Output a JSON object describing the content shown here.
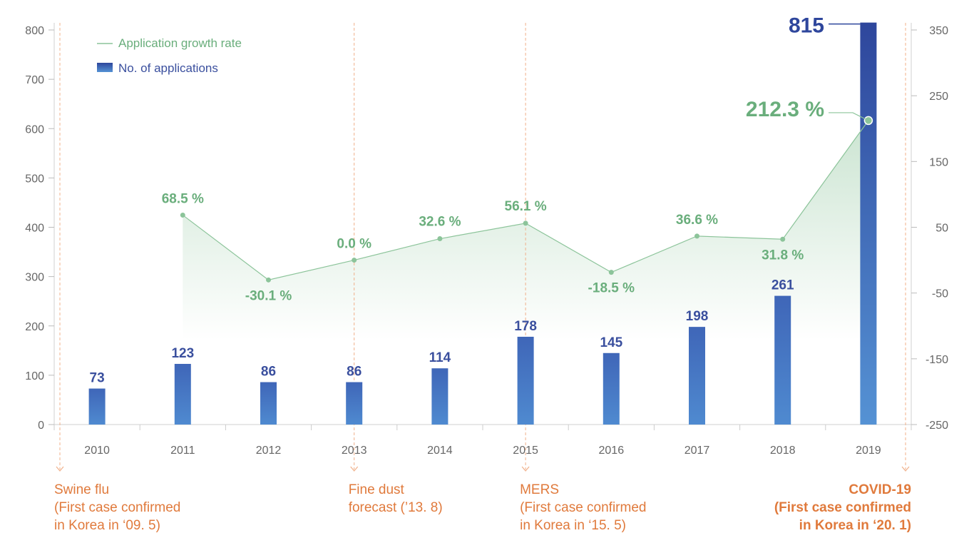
{
  "chart_data": {
    "type": "bar",
    "categories": [
      "2010",
      "2011",
      "2012",
      "2013",
      "2014",
      "2015",
      "2016",
      "2017",
      "2018",
      "2019"
    ],
    "series": [
      {
        "name": "No. of applications",
        "type": "bar",
        "axis": "left",
        "values": [
          73,
          123,
          86,
          86,
          114,
          178,
          145,
          198,
          261,
          815
        ],
        "labels": [
          "73",
          "123",
          "86",
          "86",
          "114",
          "178",
          "145",
          "198",
          "261",
          "815"
        ]
      },
      {
        "name": "Application growth rate",
        "type": "line",
        "axis": "right",
        "values": [
          null,
          68.5,
          -30.1,
          0.0,
          32.6,
          56.1,
          -18.5,
          36.6,
          31.8,
          212.3
        ],
        "labels": [
          "",
          "68.5 %",
          "-30.1 %",
          "0.0 %",
          "32.6 %",
          "56.1 %",
          "-18.5 %",
          "36.6 %",
          "31.8 %",
          "212.3 %"
        ]
      }
    ],
    "y_left": {
      "ylim": [
        0,
        800
      ],
      "ticks": [
        "0",
        "100",
        "200",
        "300",
        "400",
        "500",
        "600",
        "700",
        "800"
      ]
    },
    "y_right": {
      "ylim": [
        -250,
        350
      ],
      "ticks": [
        "-250",
        "-150",
        "-50",
        "50",
        "150",
        "250",
        "350"
      ]
    },
    "legend_position": "top-left",
    "grid": false,
    "colors": {
      "bar": "#4a7fc8",
      "bar_dark": "#2f4a9e",
      "line": "#8cc49a",
      "label_bar": "#3a4f9e",
      "label_line": "#6aae7c",
      "event": "#e07a3c"
    }
  },
  "events": [
    {
      "category": "2010",
      "lines": [
        "Swine flu",
        "(First case confirmed",
        "in Korea in ‘09. 5)"
      ],
      "bold": false
    },
    {
      "category": "2013",
      "lines": [
        "Fine dust",
        "forecast (’13. 8)"
      ],
      "bold": false
    },
    {
      "category": "2015",
      "lines": [
        "MERS",
        "(First case confirmed",
        "in Korea in ‘15. 5)"
      ],
      "bold": false
    },
    {
      "category": "2019",
      "lines": [
        "COVID-19",
        "(First case confirmed",
        "in Korea in ‘20. 1)"
      ],
      "bold": true
    }
  ]
}
